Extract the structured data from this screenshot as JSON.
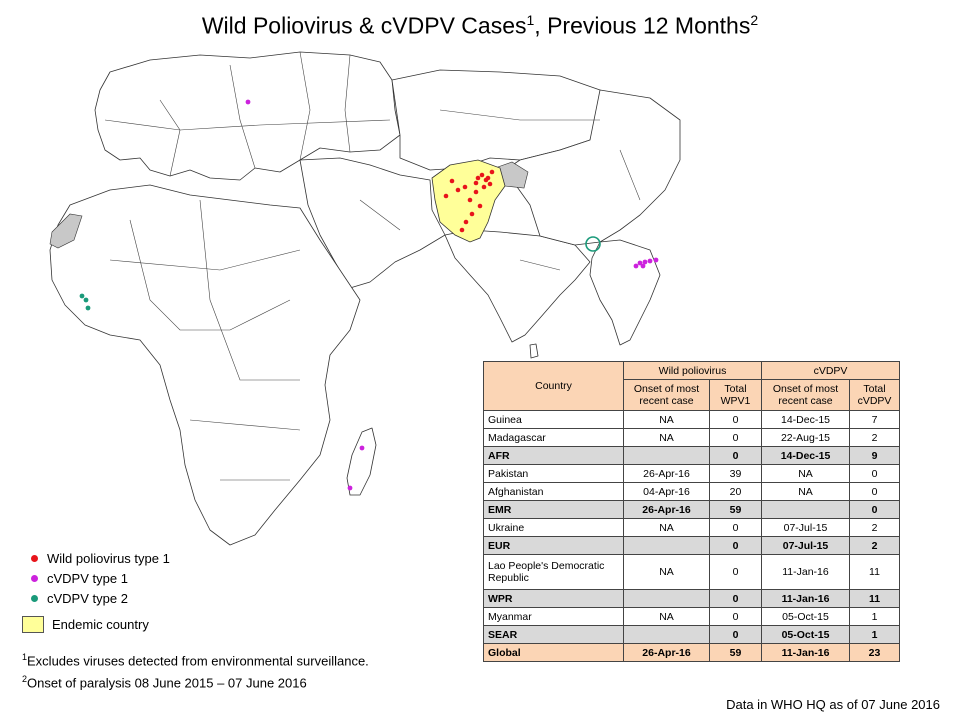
{
  "title": {
    "main": "Wild Poliovirus & cVDPV Cases",
    "sup1": "1",
    "part2": ", Previous 12 Months",
    "sup2": "2"
  },
  "colors": {
    "wild": "#e8141b",
    "cvdpv1": "#cc22dd",
    "cvdpv2": "#1a9a7a",
    "endemic": "#ffff99",
    "grey": "#c8c8c8"
  },
  "legend": {
    "wild": "Wild poliovirus type 1",
    "cvdpv1": "cVDPV type 1",
    "cvdpv2": "cVDPV type 2",
    "endemic": "Endemic country"
  },
  "footnotes": {
    "n1": "1",
    "f1": "Excludes viruses detected from environmental  surveillance.",
    "n2": "2",
    "f2": "Onset of paralysis  08 June 2015 – 07 June 2016"
  },
  "source": "Data in WHO HQ as of 07 June 2016",
  "table": {
    "h_country": "Country",
    "h_wild": "Wild poliovirus",
    "h_cvdpv": "cVDPV",
    "h_onset": "Onset of most recent case",
    "h_total_wpv": "Total WPV1",
    "h_onset2": "Onset of most recent case",
    "h_total_cvdpv": "Total cVDPV",
    "rows": [
      {
        "country": "Guinea",
        "w_onset": "NA",
        "w_total": "0",
        "c_onset": "14-Dec-15",
        "c_total": "7"
      },
      {
        "country": "Madagascar",
        "w_onset": "NA",
        "w_total": "0",
        "c_onset": "22-Aug-15",
        "c_total": "2"
      },
      {
        "country": "AFR",
        "w_onset": "",
        "w_total": "0",
        "c_onset": "14-Dec-15",
        "c_total": "9"
      },
      {
        "country": "Pakistan",
        "w_onset": "26-Apr-16",
        "w_total": "39",
        "c_onset": "NA",
        "c_total": "0"
      },
      {
        "country": "Afghanistan",
        "w_onset": "04-Apr-16",
        "w_total": "20",
        "c_onset": "NA",
        "c_total": "0"
      },
      {
        "country": "EMR",
        "w_onset": "26-Apr-16",
        "w_total": "59",
        "c_onset": "",
        "c_total": "0"
      },
      {
        "country": "Ukraine",
        "w_onset": "NA",
        "w_total": "0",
        "c_onset": "07-Jul-15",
        "c_total": "2"
      },
      {
        "country": "EUR",
        "w_onset": "",
        "w_total": "0",
        "c_onset": "07-Jul-15",
        "c_total": "2"
      },
      {
        "country": "Lao People's Democratic Republic",
        "w_onset": "NA",
        "w_total": "0",
        "c_onset": "11-Jan-16",
        "c_total": "11"
      },
      {
        "country": "WPR",
        "w_onset": "",
        "w_total": "0",
        "c_onset": "11-Jan-16",
        "c_total": "11"
      },
      {
        "country": "Myanmar",
        "w_onset": "NA",
        "w_total": "0",
        "c_onset": "05-Oct-15",
        "c_total": "1"
      },
      {
        "country": "SEAR",
        "w_onset": "",
        "w_total": "0",
        "c_onset": "05-Oct-15",
        "c_total": "1"
      },
      {
        "country": "Global",
        "w_onset": "26-Apr-16",
        "w_total": "59",
        "c_onset": "11-Jan-16",
        "c_total": "23"
      }
    ]
  }
}
